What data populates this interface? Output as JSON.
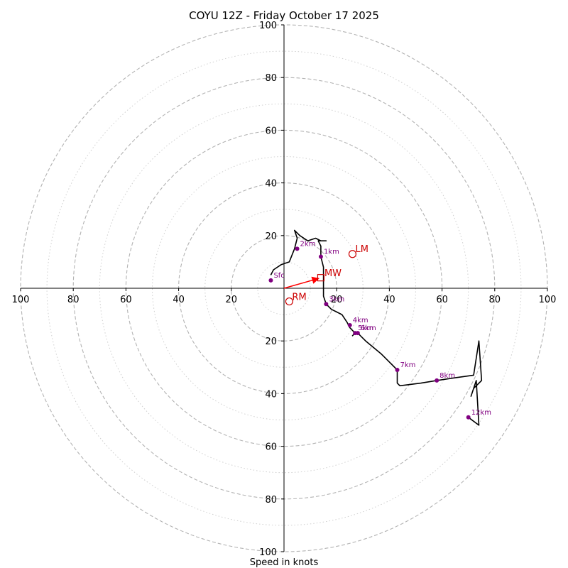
{
  "chart_data": {
    "type": "hodograph",
    "title": "COYU 12Z - Friday October 17 2025",
    "xlabel": "Speed in knots",
    "range": 100,
    "dashed_rings": [
      20,
      40,
      60,
      80,
      100
    ],
    "dotted_rings": [
      10,
      30,
      50,
      70,
      90
    ],
    "axis_tick_labels": {
      "x_left": [
        "100",
        "80",
        "60",
        "40",
        "20"
      ],
      "x_right": [
        "20",
        "40",
        "60",
        "80",
        "100"
      ],
      "y_top": [
        "100",
        "80",
        "60",
        "40",
        "20"
      ],
      "y_bottom": [
        "20",
        "40",
        "60",
        "80",
        "100"
      ],
      "x_left_values": [
        -100,
        -80,
        -60,
        -40,
        -20
      ],
      "x_right_values": [
        20,
        40,
        60,
        80,
        100
      ],
      "y_top_values": [
        100,
        80,
        60,
        40,
        20
      ],
      "y_bottom_values": [
        -20,
        -40,
        -60,
        -80,
        -100
      ]
    },
    "trace": [
      [
        -5,
        5
      ],
      [
        -4,
        7
      ],
      [
        -1,
        9
      ],
      [
        2,
        10
      ],
      [
        4,
        15
      ],
      [
        5,
        19
      ],
      [
        4,
        22
      ],
      [
        6,
        20
      ],
      [
        9,
        18
      ],
      [
        12,
        19
      ],
      [
        14,
        18
      ],
      [
        16,
        18
      ],
      [
        13,
        18
      ],
      [
        14,
        16
      ],
      [
        14,
        14
      ],
      [
        14,
        12
      ],
      [
        15,
        8
      ],
      [
        15,
        2
      ],
      [
        15,
        -3
      ],
      [
        16,
        -6
      ],
      [
        18,
        -8
      ],
      [
        20,
        -9
      ],
      [
        22,
        -10
      ],
      [
        24,
        -13
      ],
      [
        25,
        -15
      ],
      [
        26,
        -16
      ],
      [
        27,
        -17
      ],
      [
        26,
        -18
      ],
      [
        27,
        -17
      ],
      [
        28,
        -17
      ],
      [
        31,
        -20
      ],
      [
        37,
        -25
      ],
      [
        43,
        -31
      ],
      [
        43,
        -36
      ],
      [
        44,
        -37
      ],
      [
        52,
        -36
      ],
      [
        58,
        -35
      ],
      [
        65,
        -34
      ],
      [
        72,
        -33
      ],
      [
        74,
        -20
      ],
      [
        75,
        -35
      ],
      [
        72,
        -38
      ],
      [
        71,
        -41
      ],
      [
        73,
        -35
      ],
      [
        74,
        -52
      ],
      [
        70,
        -49
      ]
    ],
    "height_markers": [
      {
        "label": "Sfc",
        "u": -5,
        "v": 3
      },
      {
        "label": "1km",
        "u": 14,
        "v": 12
      },
      {
        "label": "2km",
        "u": 5,
        "v": 15
      },
      {
        "label": "3km",
        "u": 16,
        "v": -6
      },
      {
        "label": "4km",
        "u": 25,
        "v": -14
      },
      {
        "label": "5km",
        "u": 27,
        "v": -17
      },
      {
        "label": "6km",
        "u": 28,
        "v": -17
      },
      {
        "label": "7km",
        "u": 43,
        "v": -31
      },
      {
        "label": "8km",
        "u": 58,
        "v": -35
      },
      {
        "label": "12km",
        "u": 70,
        "v": -49
      }
    ],
    "storm_motion": {
      "mean_wind": {
        "label": "MW",
        "u": 14,
        "v": 4
      },
      "left_mover": {
        "label": "LM",
        "u": 26,
        "v": 13
      },
      "right_mover": {
        "label": "RM",
        "u": 2,
        "v": -5
      }
    },
    "colors": {
      "trace": "#000000",
      "marker": "#800080",
      "storm": "#cc0000",
      "arrow": "#ff0000",
      "ring": "#b3b3b3",
      "axis": "#000000"
    }
  }
}
